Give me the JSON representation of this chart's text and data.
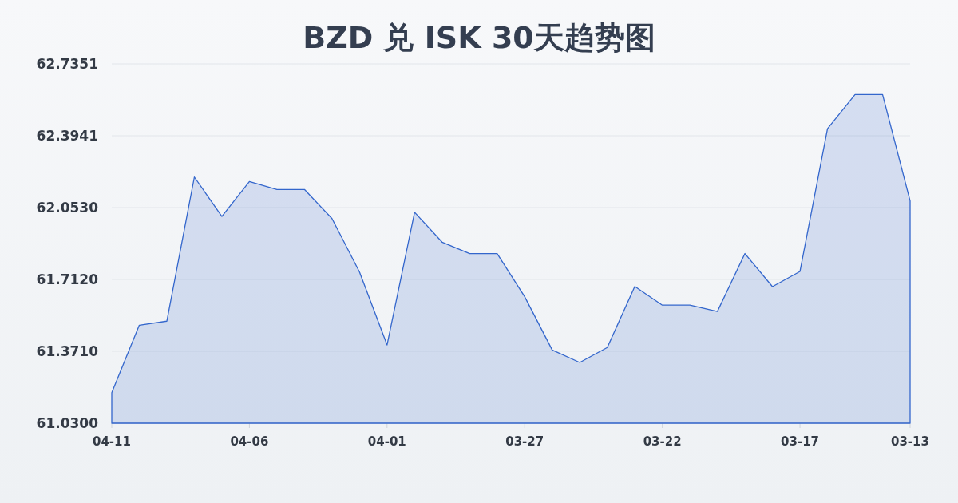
{
  "chart_data": {
    "type": "area",
    "title": "BZD 兑 ISK 30天趋势图",
    "categories": [
      "04-11",
      null,
      null,
      null,
      null,
      "04-06",
      null,
      null,
      null,
      null,
      "04-01",
      null,
      null,
      null,
      null,
      "03-27",
      null,
      null,
      null,
      null,
      "03-22",
      null,
      null,
      null,
      null,
      "03-17",
      null,
      null,
      null,
      "03-13"
    ],
    "series": [
      {
        "color": "#3366cc",
        "values": [
          61.175,
          61.495,
          61.514,
          62.198,
          62.011,
          62.177,
          62.139,
          62.139,
          62.001,
          61.747,
          61.401,
          62.031,
          61.889,
          61.835,
          61.835,
          61.63,
          61.377,
          61.318,
          61.389,
          61.679,
          61.59,
          61.59,
          61.56,
          61.835,
          61.678,
          61.75,
          62.428,
          62.59,
          62.59,
          62.085
        ]
      }
    ],
    "ylim": [
      61.03,
      62.7351
    ],
    "yticks": [
      {
        "value": 61.03,
        "label": "61.0300"
      },
      {
        "value": 61.371,
        "label": "61.3710"
      },
      {
        "value": 61.712,
        "label": "61.7120"
      },
      {
        "value": 62.053,
        "label": "62.0530"
      },
      62.3941,
      62.7351
    ],
    "grid": "y"
  }
}
